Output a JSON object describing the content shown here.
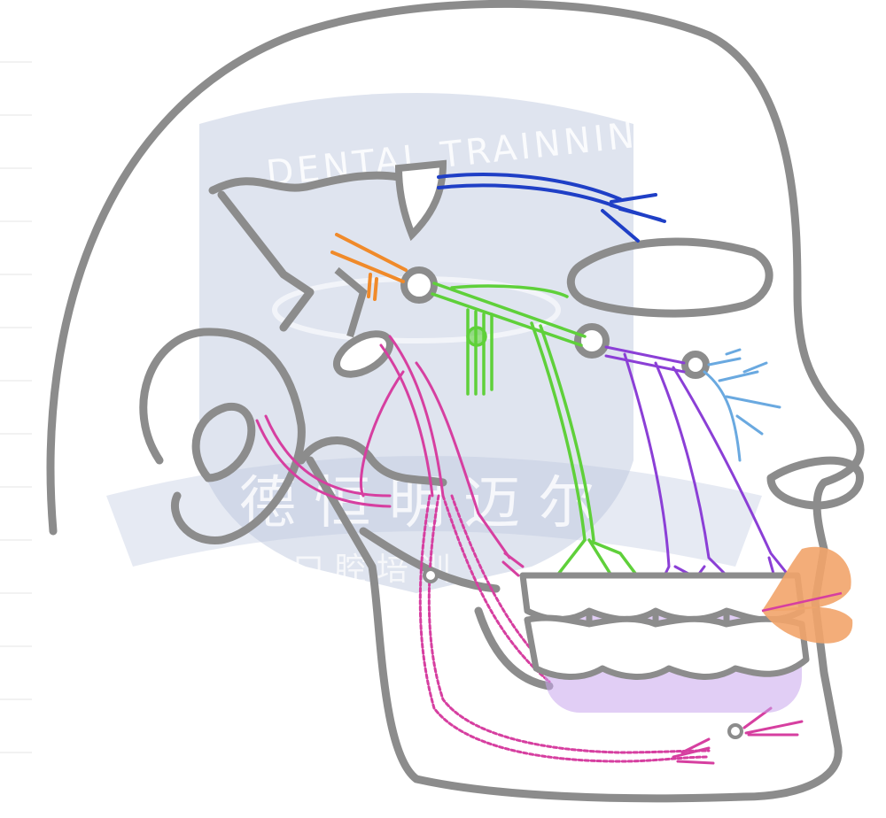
{
  "watermark": {
    "brand": "DENTAL TRAINNING",
    "chinese": "德 恒 明 迈 尔",
    "chinese_sub": "口 腔 培 训"
  },
  "colors": {
    "outline": "#8c8c8c",
    "ophthalmic": "#1f3fc6",
    "maxillary": "#5fd03a",
    "maxillary_branch": "#8b3fd6",
    "infraorbital": "#6aa9e0",
    "mandibular": "#d63fa0",
    "chorda": "#f08a2a",
    "lip": "#f2a46a",
    "palate_highlight": "#c9a6ec",
    "watermark_bg": "#b7c4dc"
  }
}
